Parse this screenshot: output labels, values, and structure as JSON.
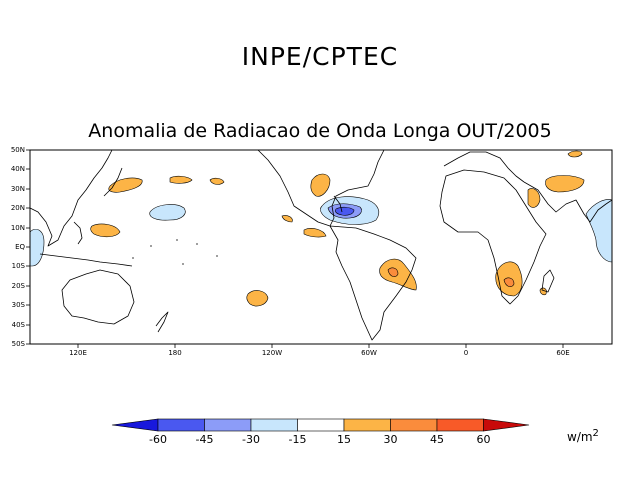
{
  "header": {
    "agency": "INPE/CPTEC",
    "title": "Anomalia de Radiacao de Onda Longa OUT/2005"
  },
  "map": {
    "lat_labels": [
      "50N",
      "40N",
      "30N",
      "20N",
      "10N",
      "EQ",
      "10S",
      "20S",
      "30S",
      "40S",
      "50S"
    ],
    "lon_labels": [
      "120E",
      "180",
      "120W",
      "60W",
      "0",
      "60E"
    ]
  },
  "colorbar": {
    "labels": [
      "-60",
      "-45",
      "-30",
      "-15",
      "15",
      "30",
      "45",
      "60"
    ],
    "colors": [
      "#1818dc",
      "#4a58f0",
      "#8c9cf8",
      "#c8e6fc",
      "#ffffff",
      "#fcb446",
      "#fa8c3c",
      "#f85a28",
      "#c80a0a"
    ],
    "units_text": "w/m",
    "units_exp": "2"
  }
}
